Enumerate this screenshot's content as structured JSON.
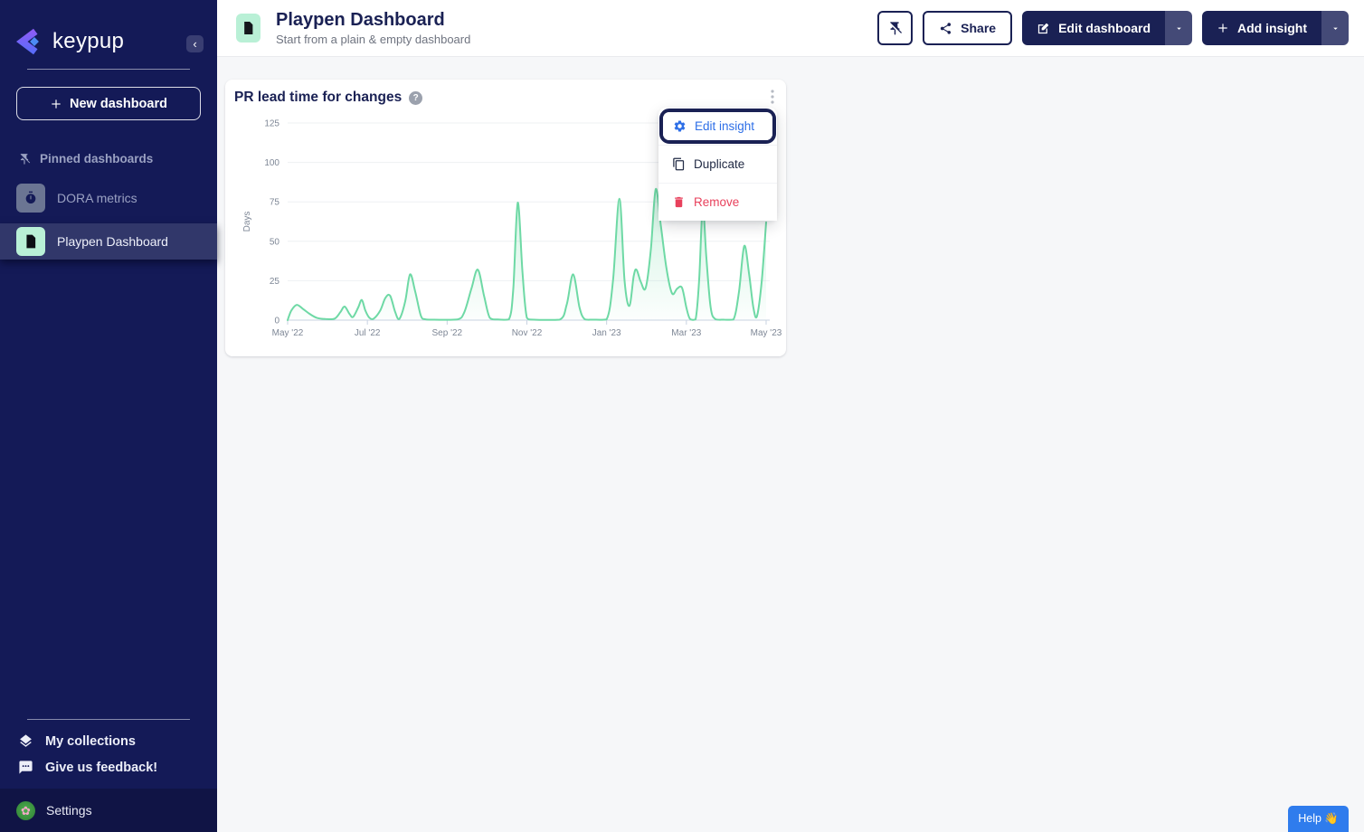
{
  "sidebar": {
    "brand": "keypup",
    "new_dashboard_label": "New dashboard",
    "pinned_section_label": "Pinned dashboards",
    "items": [
      {
        "label": "DORA metrics",
        "active": false
      },
      {
        "label": "Playpen Dashboard",
        "active": true
      }
    ],
    "footer_links": [
      {
        "label": "My collections"
      },
      {
        "label": "Give us feedback!"
      }
    ],
    "settings_label": "Settings"
  },
  "topbar": {
    "title": "Playpen Dashboard",
    "subtitle": "Start from a plain & empty dashboard",
    "share_label": "Share",
    "edit_dashboard_label": "Edit dashboard",
    "add_insight_label": "Add insight"
  },
  "insight_card": {
    "title": "PR lead time for changes",
    "help_glyph": "?"
  },
  "context_menu": {
    "edit_label": "Edit insight",
    "duplicate_label": "Duplicate",
    "remove_label": "Remove"
  },
  "help_button": {
    "label": "Help 👋"
  },
  "colors": {
    "accent_green": "#6ed9a5",
    "navy": "#1a2154",
    "menu_blue": "#2e6fe7",
    "menu_red": "#e8415c",
    "help_blue": "#2f7ced",
    "sidebar_bg": "#141a57",
    "mint_badge": "#b9f0d6"
  },
  "chart_data": {
    "type": "area",
    "title": "PR lead time for changes",
    "ylabel": "Days",
    "ylim": [
      0,
      125
    ],
    "yticks": [
      0,
      25,
      50,
      75,
      100,
      125
    ],
    "x_range": [
      0,
      12
    ],
    "x_unit": "months since May 2022",
    "xtick_positions": [
      0,
      2,
      4,
      6,
      8,
      10,
      12
    ],
    "xtick_labels": [
      "May '22",
      "Jul '22",
      "Sep '22",
      "Nov '22",
      "Jan '23",
      "Mar '23",
      "May '23"
    ],
    "grid": "horizontal",
    "legend": "none",
    "line_color": "#6ed9a5",
    "points": [
      [
        0.0,
        0
      ],
      [
        0.09,
        6
      ],
      [
        0.23,
        9.7
      ],
      [
        0.39,
        7
      ],
      [
        0.55,
        4
      ],
      [
        0.73,
        1.5
      ],
      [
        0.95,
        0.7
      ],
      [
        1.18,
        1
      ],
      [
        1.32,
        5
      ],
      [
        1.43,
        8.6
      ],
      [
        1.55,
        4
      ],
      [
        1.64,
        2
      ],
      [
        1.77,
        8
      ],
      [
        1.86,
        12.8
      ],
      [
        1.95,
        6
      ],
      [
        2.05,
        1.5
      ],
      [
        2.16,
        1
      ],
      [
        2.32,
        6
      ],
      [
        2.45,
        14
      ],
      [
        2.57,
        15.5
      ],
      [
        2.7,
        5
      ],
      [
        2.8,
        0.7
      ],
      [
        2.95,
        12
      ],
      [
        3.07,
        29
      ],
      [
        3.2,
        18
      ],
      [
        3.34,
        3
      ],
      [
        3.45,
        0.5
      ],
      [
        3.68,
        0.3
      ],
      [
        4.25,
        0.4
      ],
      [
        4.43,
        5
      ],
      [
        4.61,
        20
      ],
      [
        4.77,
        32
      ],
      [
        4.93,
        15
      ],
      [
        5.07,
        1.5
      ],
      [
        5.27,
        0.4
      ],
      [
        5.55,
        0.5
      ],
      [
        5.66,
        20
      ],
      [
        5.77,
        74.5
      ],
      [
        5.89,
        30
      ],
      [
        6.0,
        1.5
      ],
      [
        6.18,
        0.3
      ],
      [
        6.82,
        0.3
      ],
      [
        7.0,
        10
      ],
      [
        7.16,
        29
      ],
      [
        7.32,
        8
      ],
      [
        7.45,
        0.6
      ],
      [
        7.66,
        0.3
      ],
      [
        8.0,
        0.5
      ],
      [
        8.16,
        25
      ],
      [
        8.32,
        77
      ],
      [
        8.45,
        25
      ],
      [
        8.57,
        9
      ],
      [
        8.68,
        28
      ],
      [
        8.75,
        32
      ],
      [
        8.86,
        24
      ],
      [
        8.98,
        20.5
      ],
      [
        9.11,
        45
      ],
      [
        9.23,
        83
      ],
      [
        9.36,
        60
      ],
      [
        9.5,
        33
      ],
      [
        9.64,
        17
      ],
      [
        9.77,
        20
      ],
      [
        9.89,
        20.5
      ],
      [
        10.0,
        8
      ],
      [
        10.09,
        0.8
      ],
      [
        10.23,
        0.5
      ],
      [
        10.32,
        25
      ],
      [
        10.41,
        72
      ],
      [
        10.5,
        40
      ],
      [
        10.61,
        8
      ],
      [
        10.73,
        0.6
      ],
      [
        10.95,
        0.3
      ],
      [
        11.18,
        0.4
      ],
      [
        11.32,
        18
      ],
      [
        11.45,
        47
      ],
      [
        11.57,
        30
      ],
      [
        11.68,
        8
      ],
      [
        11.77,
        2.5
      ],
      [
        11.89,
        25
      ],
      [
        12.0,
        62
      ]
    ]
  }
}
